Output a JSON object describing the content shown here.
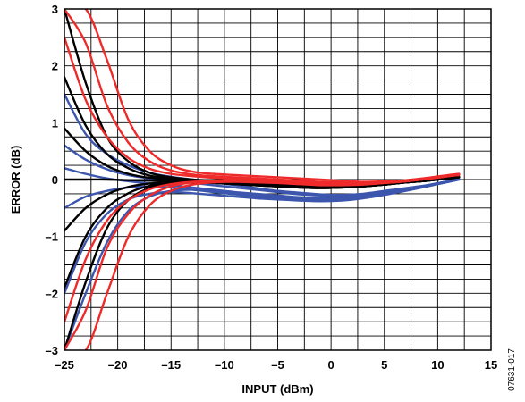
{
  "chart_data": {
    "type": "line",
    "title": "",
    "xlabel": "INPUT (dBm)",
    "ylabel": "ERROR (dB)",
    "xlim": [
      -25,
      15
    ],
    "ylim": [
      -3,
      3
    ],
    "x_ticks": [
      -25,
      -20,
      -15,
      -10,
      -5,
      0,
      5,
      10,
      15
    ],
    "y_ticks": [
      -3,
      -2,
      -1,
      0,
      1,
      2,
      3
    ],
    "x_tick_labels": [
      "–25",
      "–20",
      "–15",
      "–10",
      "–5",
      "0",
      "5",
      "10",
      "15"
    ],
    "y_tick_labels": [
      "–3",
      "–2",
      "–1",
      "0",
      "1",
      "2",
      "3"
    ],
    "grid": true,
    "grid_x_step": 2.5,
    "grid_y_step": 0.25,
    "colors": {
      "red": "#ee2a2a",
      "black": "#000000",
      "blue": "#3c56ae"
    },
    "x": [
      -25,
      -23,
      -21,
      -19,
      -17,
      -15,
      -13,
      -11,
      -9,
      -7,
      -5,
      -3,
      -1,
      1,
      3,
      5,
      7,
      9,
      11,
      12
    ],
    "series": [
      {
        "color_key": "blue",
        "values": [
          1.5,
          0.8,
          0.45,
          0.25,
          0.12,
          0.05,
          0.0,
          -0.05,
          -0.1,
          -0.15,
          -0.2,
          -0.23,
          -0.26,
          -0.27,
          -0.25,
          -0.2,
          -0.15,
          -0.1,
          -0.03,
          0.0
        ]
      },
      {
        "color_key": "blue",
        "values": [
          0.6,
          0.35,
          0.18,
          0.08,
          0.02,
          -0.02,
          -0.06,
          -0.1,
          -0.14,
          -0.18,
          -0.22,
          -0.26,
          -0.28,
          -0.29,
          -0.27,
          -0.22,
          -0.17,
          -0.1,
          -0.03,
          0.0
        ]
      },
      {
        "color_key": "blue",
        "values": [
          0.2,
          0.1,
          0.02,
          -0.03,
          -0.07,
          -0.1,
          -0.14,
          -0.18,
          -0.22,
          -0.25,
          -0.28,
          -0.31,
          -0.33,
          -0.33,
          -0.3,
          -0.25,
          -0.18,
          -0.11,
          -0.04,
          0.0
        ]
      },
      {
        "color_key": "blue",
        "values": [
          -0.5,
          -0.3,
          -0.2,
          -0.14,
          -0.12,
          -0.14,
          -0.18,
          -0.22,
          -0.26,
          -0.3,
          -0.33,
          -0.36,
          -0.38,
          -0.37,
          -0.33,
          -0.27,
          -0.2,
          -0.12,
          -0.04,
          0.0
        ]
      },
      {
        "color_key": "blue",
        "values": [
          -2.0,
          -1.1,
          -0.6,
          -0.35,
          -0.25,
          -0.22,
          -0.24,
          -0.27,
          -0.3,
          -0.33,
          -0.35,
          -0.37,
          -0.38,
          -0.36,
          -0.32,
          -0.26,
          -0.19,
          -0.12,
          -0.04,
          0.0
        ]
      },
      {
        "color_key": "blue",
        "values": [
          -3.0,
          -2.0,
          -1.1,
          -0.55,
          -0.3,
          -0.2,
          -0.18,
          -0.2,
          -0.24,
          -0.28,
          -0.31,
          -0.34,
          -0.35,
          -0.34,
          -0.3,
          -0.24,
          -0.18,
          -0.1,
          -0.03,
          0.0
        ]
      },
      {
        "color_key": "black",
        "values": [
          3.0,
          1.7,
          0.75,
          0.32,
          0.12,
          0.04,
          0.0,
          -0.02,
          -0.04,
          -0.06,
          -0.08,
          -0.1,
          -0.12,
          -0.13,
          -0.11,
          -0.08,
          -0.05,
          -0.02,
          0.02,
          0.05
        ]
      },
      {
        "color_key": "black",
        "values": [
          1.8,
          0.95,
          0.45,
          0.2,
          0.07,
          0.02,
          -0.01,
          -0.03,
          -0.05,
          -0.07,
          -0.09,
          -0.11,
          -0.13,
          -0.13,
          -0.11,
          -0.08,
          -0.05,
          -0.02,
          0.02,
          0.04
        ]
      },
      {
        "color_key": "black",
        "values": [
          0.9,
          0.5,
          0.24,
          0.1,
          0.03,
          0.0,
          -0.02,
          -0.04,
          -0.06,
          -0.08,
          -0.1,
          -0.12,
          -0.14,
          -0.13,
          -0.11,
          -0.08,
          -0.05,
          -0.02,
          0.02,
          0.04
        ]
      },
      {
        "color_key": "black",
        "values": [
          0.0,
          0.0,
          0.0,
          -0.01,
          -0.02,
          -0.03,
          -0.04,
          -0.05,
          -0.07,
          -0.09,
          -0.11,
          -0.13,
          -0.14,
          -0.14,
          -0.12,
          -0.09,
          -0.05,
          -0.02,
          0.02,
          0.04
        ]
      },
      {
        "color_key": "black",
        "values": [
          -0.9,
          -0.5,
          -0.26,
          -0.13,
          -0.07,
          -0.05,
          -0.05,
          -0.06,
          -0.08,
          -0.1,
          -0.12,
          -0.14,
          -0.15,
          -0.14,
          -0.12,
          -0.09,
          -0.05,
          -0.02,
          0.02,
          0.04
        ]
      },
      {
        "color_key": "black",
        "values": [
          -1.9,
          -1.0,
          -0.5,
          -0.24,
          -0.11,
          -0.06,
          -0.05,
          -0.06,
          -0.08,
          -0.1,
          -0.12,
          -0.14,
          -0.15,
          -0.14,
          -0.12,
          -0.09,
          -0.05,
          -0.02,
          0.02,
          0.04
        ]
      },
      {
        "color_key": "black",
        "values": [
          -3.0,
          -1.8,
          -0.85,
          -0.36,
          -0.15,
          -0.07,
          -0.05,
          -0.06,
          -0.08,
          -0.1,
          -0.12,
          -0.14,
          -0.15,
          -0.14,
          -0.12,
          -0.09,
          -0.05,
          -0.02,
          0.02,
          0.04
        ]
      },
      {
        "color_key": "red",
        "values": [
          3.0,
          3.0,
          2.1,
          1.05,
          0.5,
          0.25,
          0.14,
          0.1,
          0.08,
          0.06,
          0.04,
          0.02,
          0.0,
          -0.02,
          -0.04,
          -0.03,
          -0.01,
          0.03,
          0.08,
          0.1
        ]
      },
      {
        "color_key": "red",
        "values": [
          3.0,
          2.4,
          1.3,
          0.65,
          0.32,
          0.16,
          0.09,
          0.06,
          0.04,
          0.02,
          0.0,
          -0.02,
          -0.04,
          -0.05,
          -0.06,
          -0.05,
          -0.02,
          0.02,
          0.07,
          0.1
        ]
      },
      {
        "color_key": "red",
        "values": [
          2.5,
          1.4,
          0.75,
          0.38,
          0.19,
          0.1,
          0.06,
          0.03,
          0.01,
          -0.01,
          -0.03,
          -0.05,
          -0.07,
          -0.08,
          -0.08,
          -0.06,
          -0.03,
          0.02,
          0.07,
          0.09
        ]
      },
      {
        "color_key": "red",
        "values": [
          -2.5,
          -1.4,
          -0.72,
          -0.36,
          -0.17,
          -0.08,
          -0.04,
          -0.03,
          -0.03,
          -0.04,
          -0.05,
          -0.07,
          -0.08,
          -0.09,
          -0.08,
          -0.06,
          -0.03,
          0.01,
          0.06,
          0.09
        ]
      },
      {
        "color_key": "red",
        "values": [
          -3.0,
          -2.3,
          -1.2,
          -0.6,
          -0.28,
          -0.12,
          -0.05,
          -0.03,
          -0.03,
          -0.04,
          -0.06,
          -0.08,
          -0.09,
          -0.09,
          -0.08,
          -0.06,
          -0.03,
          0.01,
          0.06,
          0.08
        ]
      },
      {
        "color_key": "red",
        "values": [
          -3.0,
          -3.0,
          -2.0,
          -1.0,
          -0.45,
          -0.2,
          -0.09,
          -0.05,
          -0.04,
          -0.05,
          -0.06,
          -0.08,
          -0.1,
          -0.1,
          -0.09,
          -0.06,
          -0.03,
          0.01,
          0.06,
          0.08
        ]
      }
    ]
  },
  "figure_code": "07631-017"
}
